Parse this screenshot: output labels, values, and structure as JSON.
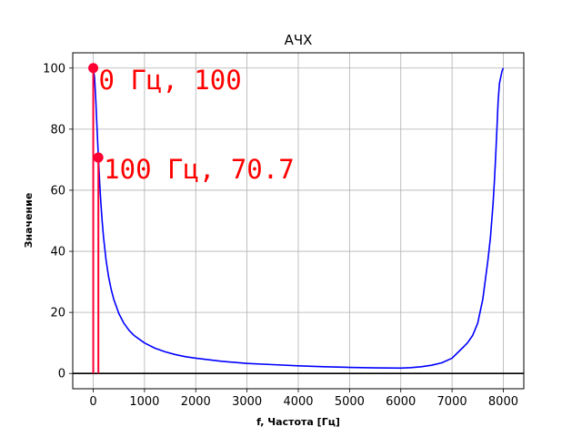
{
  "chart_data": {
    "type": "line",
    "title": "АЧХ",
    "xlabel": "f, Частота [Гц]",
    "ylabel": "Значение",
    "xlim": [
      -400,
      8400
    ],
    "ylim": [
      -5,
      105
    ],
    "xticks": [
      0,
      1000,
      2000,
      3000,
      4000,
      5000,
      6000,
      7000,
      8000
    ],
    "yticks": [
      0,
      20,
      40,
      60,
      80,
      100
    ],
    "grid": true,
    "hline": {
      "y": 0,
      "color": "#000000"
    },
    "series": [
      {
        "color": "#0000ff",
        "x": [
          0,
          25,
          50,
          75,
          100,
          125,
          150,
          175,
          200,
          250,
          300,
          350,
          400,
          500,
          600,
          700,
          800,
          1000,
          1200,
          1400,
          1600,
          1800,
          2000,
          2500,
          3000,
          3500,
          4000,
          4500,
          5000,
          5500,
          6000,
          6200,
          6400,
          6600,
          6800,
          7000,
          7200,
          7300,
          7400,
          7500,
          7600,
          7700,
          7750,
          7800,
          7825,
          7850,
          7875,
          7900,
          7925,
          7950,
          7975,
          8000
        ],
        "y": [
          100,
          97,
          89.4,
          79.9,
          70.7,
          62.5,
          55.5,
          49.7,
          44.7,
          37.1,
          31.6,
          27.5,
          24.3,
          19.6,
          16.4,
          14.1,
          12.4,
          10.0,
          8.3,
          7.1,
          6.2,
          5.5,
          5.0,
          4.0,
          3.3,
          2.9,
          2.5,
          2.2,
          2.0,
          1.85,
          1.75,
          1.9,
          2.2,
          2.7,
          3.5,
          5.0,
          8.3,
          10.0,
          12.4,
          16.4,
          24.3,
          37.1,
          44.7,
          55.5,
          62.5,
          70.7,
          79.9,
          89.4,
          95.0,
          97.0,
          99.0,
          100
        ]
      }
    ],
    "markers": [
      {
        "x": 0,
        "y": 100,
        "label": "0 Гц, 100",
        "color": "#ff0033"
      },
      {
        "x": 100,
        "y": 70.7,
        "label": "100 Гц, 70.7",
        "color": "#ff0033"
      }
    ]
  }
}
